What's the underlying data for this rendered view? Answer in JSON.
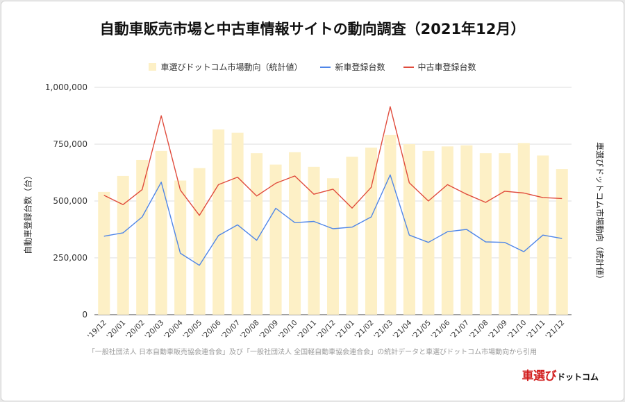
{
  "title": "自動車販売市場と中古車情報サイトの動向調査（2021年12月）",
  "footnote": "「一般社団法人 日本自動車販売協会連合会」及び「一般社団法人 全国軽自動車協会連合会」の統計データと車選びドットコム市場動向から引用",
  "logo": {
    "main": "車選び",
    "sub": "ドットコム"
  },
  "chart_data": {
    "type": "bar",
    "title": "自動車販売市場と中古車情報サイトの動向調査（2021年12月）",
    "categories": [
      "'19/12",
      "'20/01",
      "'20/02",
      "'20/03",
      "'20/04",
      "'20/05",
      "'20/06",
      "'20/07",
      "'20/08",
      "'20/09",
      "'20/10",
      "'20/11",
      "'20/12",
      "'21/01",
      "'21/02",
      "'21/03",
      "'21/04",
      "'21/05",
      "'21/06",
      "'21/07",
      "'21/08",
      "'21/09",
      "'21/10",
      "'21/11",
      "'21/12"
    ],
    "ylabel": "自動車登録台数（台）",
    "y2label": "車選びドットコム市場動向（統計値）",
    "ylim": [
      0,
      1000000
    ],
    "yticks": [
      {
        "value": 0,
        "label": "0"
      },
      {
        "value": 250000,
        "label": "250,000"
      },
      {
        "value": 500000,
        "label": "500,000"
      },
      {
        "value": 750000,
        "label": "750,000"
      },
      {
        "value": 1000000,
        "label": "1,000,000"
      }
    ],
    "grid": true,
    "legend_position": "top",
    "series": [
      {
        "name": "車選びドットコム市場動向（統計値）",
        "type": "bar",
        "color": "#fdf0c6",
        "values": [
          540000,
          610000,
          680000,
          720000,
          590000,
          645000,
          815000,
          800000,
          710000,
          660000,
          715000,
          650000,
          600000,
          695000,
          735000,
          790000,
          750000,
          720000,
          740000,
          745000,
          710000,
          710000,
          755000,
          700000,
          640000
        ]
      },
      {
        "name": "新車登録台数",
        "type": "line",
        "color": "#4f86e8",
        "values": [
          345000,
          360000,
          430000,
          583000,
          270000,
          217000,
          348000,
          395000,
          327000,
          468000,
          405000,
          410000,
          378000,
          385000,
          430000,
          615000,
          350000,
          318000,
          365000,
          375000,
          320000,
          318000,
          277000,
          350000,
          335000
        ]
      },
      {
        "name": "中古車登録台数",
        "type": "line",
        "color": "#e04b3c",
        "values": [
          525000,
          484000,
          550000,
          875000,
          548000,
          437000,
          572000,
          605000,
          522000,
          578000,
          610000,
          530000,
          552000,
          469000,
          560000,
          915000,
          580000,
          500000,
          572000,
          530000,
          494000,
          543000,
          535000,
          515000,
          511000
        ]
      }
    ]
  }
}
